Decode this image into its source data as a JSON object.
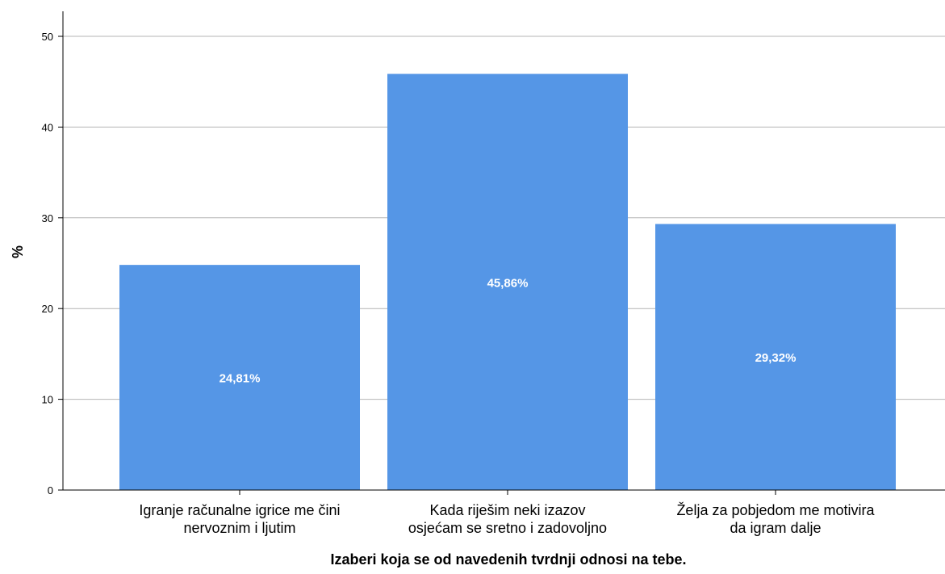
{
  "chart_data": {
    "type": "bar",
    "categories": [
      [
        "Igranje računalne igrice me čini",
        "nervoznim i ljutim"
      ],
      [
        "Kada riješim neki izazov",
        "osjećam se sretno i zadovoljno"
      ],
      [
        "Želja za pobjedom me motivira",
        "da igram dalje"
      ]
    ],
    "values": [
      24.81,
      45.86,
      29.32
    ],
    "value_labels": [
      "24,81%",
      "45,86%",
      "29,32%"
    ],
    "title": "",
    "xlabel": "Izaberi koja se od navedenih tvrdnji odnosi na tebe.",
    "ylabel": "%",
    "ylim": [
      0,
      50
    ],
    "yticks": [
      "0",
      "10",
      "20",
      "30",
      "40",
      "50"
    ],
    "grid": true,
    "legend": "none",
    "colors": {
      "bar": "#5596e6",
      "grid": "#b4b4b4",
      "axis": "#000000",
      "data_label": "#ffffff"
    }
  }
}
